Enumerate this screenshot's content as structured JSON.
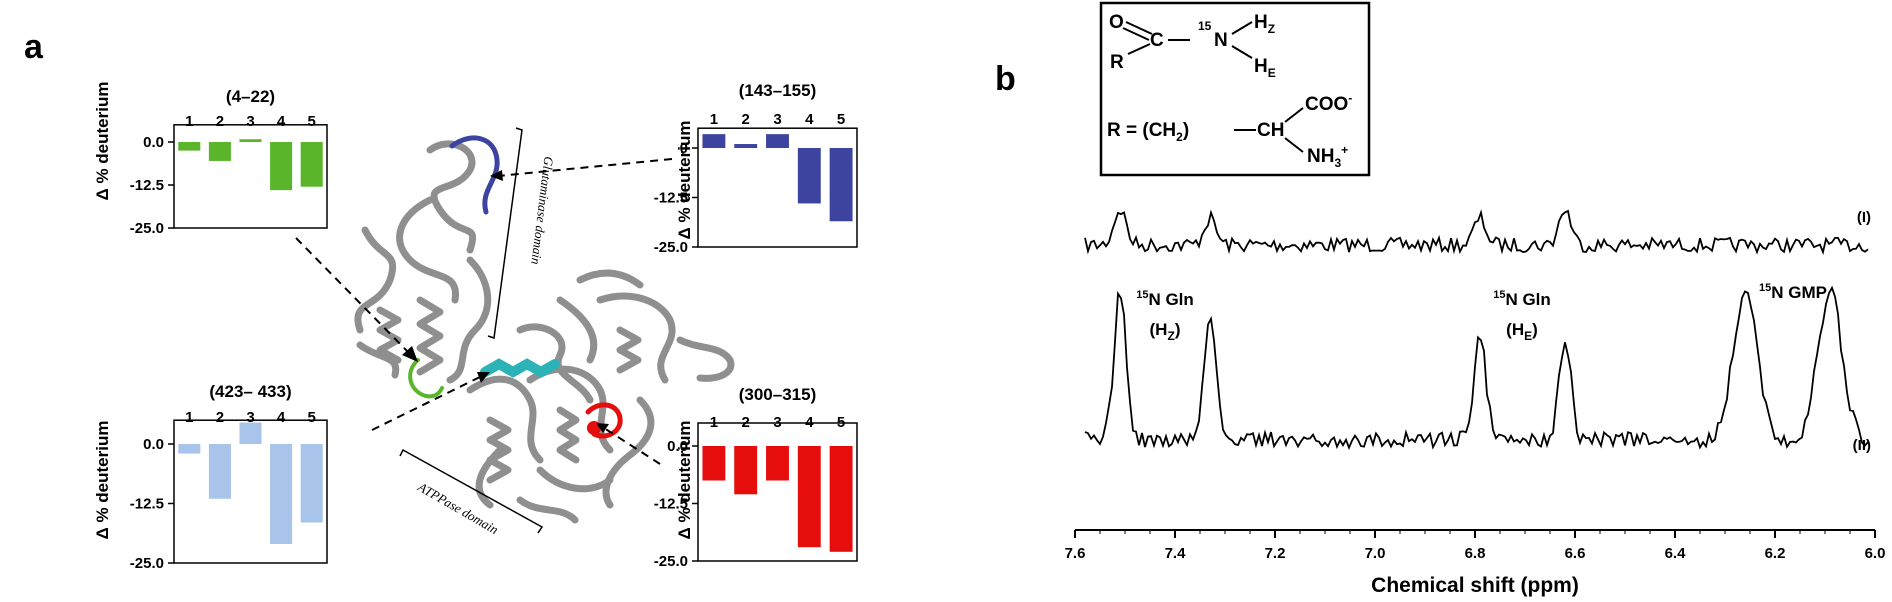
{
  "panels": {
    "a": {
      "letter": "a"
    },
    "b": {
      "letter": "b"
    }
  },
  "protein": {
    "domain_labels": [
      "Glutaminase domain",
      "ATPPase domain"
    ],
    "colors": {
      "ribbon": "#8a8a8a",
      "green": "#5ab52a",
      "blue": "#3c44a0",
      "lightblue": "#a9c4ea",
      "red": "#e60d0d",
      "cyan": "#2cb3b8"
    }
  },
  "chart_data": [
    {
      "type": "bar",
      "title": "(4–22)",
      "categories": [
        "1",
        "2",
        "3",
        "4",
        "5"
      ],
      "values": [
        -2.5,
        -5.5,
        0.8,
        -14.0,
        -13.0
      ],
      "ylabel": "Δ % deuterium",
      "ylim": [
        -25.0,
        5.0
      ],
      "yticks": [
        "0.0",
        "-12.5",
        "-25.0"
      ],
      "color": "#5ab52a"
    },
    {
      "type": "bar",
      "title": "(143–155)",
      "categories": [
        "1",
        "2",
        "3",
        "4",
        "5"
      ],
      "values": [
        3.5,
        1.0,
        3.5,
        -14.0,
        -18.5
      ],
      "ylabel": "Δ % deuterium",
      "ylim": [
        -25.0,
        5.0
      ],
      "yticks": [
        "0",
        "-12.5",
        "-25.0"
      ],
      "color": "#3c44a0"
    },
    {
      "type": "bar",
      "title": "(423– 433)",
      "categories": [
        "1",
        "2",
        "3",
        "4",
        "5"
      ],
      "values": [
        -2.0,
        -11.5,
        4.5,
        -21.0,
        -16.5
      ],
      "ylabel": "Δ % deuterium",
      "ylim": [
        -25.0,
        5.0
      ],
      "yticks": [
        "0.0",
        "-12.5",
        "-25.0"
      ],
      "color": "#a9c4ea"
    },
    {
      "type": "bar",
      "title": "(300–315)",
      "categories": [
        "1",
        "2",
        "3",
        "4",
        "5"
      ],
      "values": [
        -7.5,
        -10.5,
        -7.5,
        -22.0,
        -23.0
      ],
      "ylabel": "Δ % deuterium",
      "ylim": [
        -25.0,
        5.0
      ],
      "yticks": [
        "0.0",
        "-12.5",
        "-25.0"
      ],
      "color": "#e60d0d"
    },
    {
      "type": "line",
      "title": "",
      "xlabel": "Chemical shift (ppm)",
      "xlim": [
        7.6,
        6.0
      ],
      "xticks": [
        "7.6",
        "7.4",
        "7.2",
        "7.0",
        "6.8",
        "6.6",
        "6.4",
        "6.2",
        "6.0"
      ],
      "series": [
        {
          "name": "(I)",
          "peaks": [
            {
              "x": 7.51,
              "h": 0.75
            },
            {
              "x": 7.33,
              "h": 0.55
            },
            {
              "x": 6.79,
              "h": 0.55
            },
            {
              "x": 6.62,
              "h": 0.75
            }
          ]
        },
        {
          "name": "(II)",
          "peaks": [
            {
              "x": 7.51,
              "h": 1.0
            },
            {
              "x": 7.33,
              "h": 0.82
            },
            {
              "x": 6.79,
              "h": 0.7
            },
            {
              "x": 6.62,
              "h": 0.68
            },
            {
              "x": 6.26,
              "h": 1.0
            },
            {
              "x": 6.09,
              "h": 1.0
            }
          ]
        }
      ],
      "peak_labels": [
        {
          "iso": "15",
          "name": "N Gln",
          "sub_base": "(H",
          "sub": "Z",
          "sub_end": ")"
        },
        {
          "iso": "15",
          "name": "N Gln",
          "sub_base": "(H",
          "sub": "E",
          "sub_end": ")"
        },
        {
          "iso": "15",
          "name": "N GMP"
        }
      ]
    }
  ],
  "structure": {
    "o": "O",
    "c": "C",
    "iso": "15",
    "n": "N",
    "h": "H",
    "hz_sub": "Z",
    "he_sub": "E",
    "r": "R",
    "r_eq": "R = (CH",
    "r_sub": "2",
    "r_paren_end": ")",
    "ch": "CH",
    "coo": "COO",
    "coo_sup": "-",
    "nh": "NH",
    "nh_sub": "3",
    "nh_sup": "+"
  }
}
